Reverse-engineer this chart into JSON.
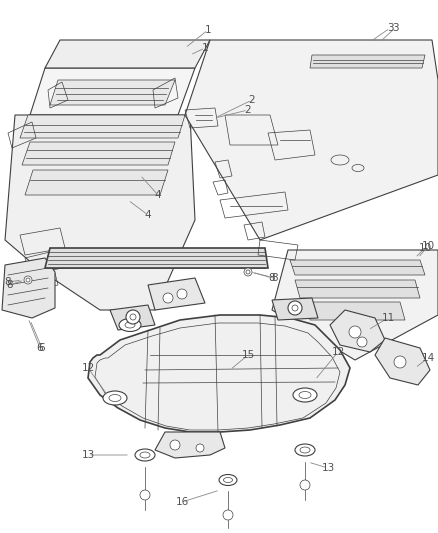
{
  "background_color": "#ffffff",
  "line_color": "#404040",
  "label_color": "#505050",
  "leader_color": "#888888",
  "lw_thin": 0.5,
  "lw_med": 0.8,
  "lw_thick": 1.2,
  "label_fontsize": 7.5,
  "figsize": [
    4.38,
    5.33
  ],
  "dpi": 100
}
